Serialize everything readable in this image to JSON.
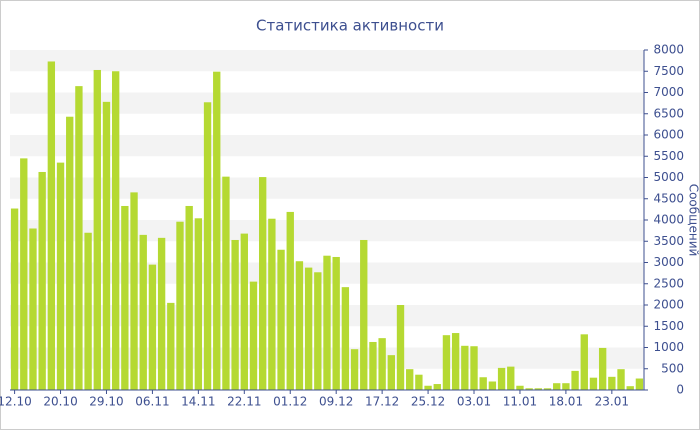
{
  "chart_data": {
    "type": "bar",
    "title": "Статистика активности",
    "y_label": "Сообщений",
    "categories": [
      "12.10",
      null,
      null,
      null,
      null,
      "20.10",
      null,
      null,
      null,
      null,
      "29.10",
      null,
      null,
      null,
      null,
      "06.11",
      null,
      null,
      null,
      null,
      "14.11",
      null,
      null,
      null,
      null,
      "22.11",
      null,
      null,
      null,
      null,
      "01.12",
      null,
      null,
      null,
      null,
      "09.12",
      null,
      null,
      null,
      null,
      "17.12",
      null,
      null,
      null,
      null,
      "25.12",
      null,
      null,
      null,
      null,
      "03.01",
      null,
      null,
      null,
      null,
      "11.01",
      null,
      null,
      null,
      null,
      "18.01",
      null,
      null,
      null,
      null,
      "23.01",
      null,
      null,
      null
    ],
    "values": [
      4270,
      5450,
      3800,
      5130,
      7730,
      5350,
      6430,
      7150,
      3700,
      7530,
      6780,
      7500,
      4330,
      4650,
      3650,
      2950,
      3580,
      2050,
      3960,
      4330,
      4040,
      6770,
      7490,
      5020,
      3530,
      3680,
      2550,
      5010,
      4030,
      3300,
      4190,
      3030,
      2880,
      2770,
      3160,
      3130,
      2420,
      960,
      3530,
      1130,
      1220,
      820,
      2000,
      490,
      360,
      100,
      140,
      1290,
      1340,
      1040,
      1030,
      300,
      200,
      520,
      550,
      100,
      40,
      40,
      40,
      160,
      160,
      450,
      1310,
      290,
      990,
      310,
      490,
      90,
      270
    ],
    "color": "#b5d932",
    "ylim": [
      0,
      8000
    ],
    "yticks": [
      0,
      500,
      1000,
      1500,
      2000,
      2500,
      3000,
      3500,
      4000,
      4500,
      5000,
      5500,
      6000,
      6500,
      7000,
      7500,
      8000
    ],
    "grid": true
  }
}
